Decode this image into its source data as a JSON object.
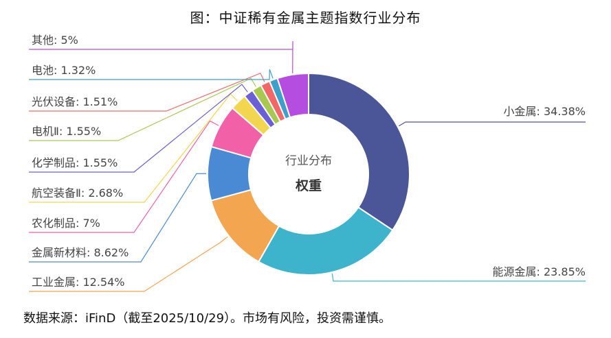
{
  "title": "图：中证稀有金属主题指数行业分布",
  "source": "数据来源：iFinD（截至2025/10/29）。市场有风险，投资需谨慎。",
  "chart_data": {
    "type": "pie",
    "variant": "donut",
    "center_labels": [
      "行业分布",
      "权重"
    ],
    "slices": [
      {
        "name": "小金属",
        "label": "小金属: 34.38%",
        "value": 34.38,
        "color": "#4b5699"
      },
      {
        "name": "能源金属",
        "label": "能源金属: 23.85%",
        "value": 23.85,
        "color": "#3db3cc"
      },
      {
        "name": "工业金属",
        "label": "工业金属: 12.54%",
        "value": 12.54,
        "color": "#f3a550"
      },
      {
        "name": "金属新材料",
        "label": "金属新材料: 8.62%",
        "value": 8.62,
        "color": "#4a8ad4"
      },
      {
        "name": "农化制品",
        "label": "农化制品: 7%",
        "value": 7,
        "color": "#f261a8"
      },
      {
        "name": "航空装备Ⅱ",
        "label": "航空装备Ⅱ: 2.68%",
        "value": 2.68,
        "color": "#f3d650"
      },
      {
        "name": "化学制品",
        "label": "化学制品: 1.55%",
        "value": 1.55,
        "color": "#6a5fd6"
      },
      {
        "name": "电机Ⅱ",
        "label": "电机Ⅱ: 1.55%",
        "value": 1.55,
        "color": "#a8c850"
      },
      {
        "name": "光伏设备",
        "label": "光伏设备: 1.51%",
        "value": 1.51,
        "color": "#f26868"
      },
      {
        "name": "电池",
        "label": "电池: 1.32%",
        "value": 1.32,
        "color": "#3d9fcc"
      },
      {
        "name": "其他",
        "label": "其他: 5%",
        "value": 5,
        "color": "#b54ee0"
      }
    ]
  }
}
